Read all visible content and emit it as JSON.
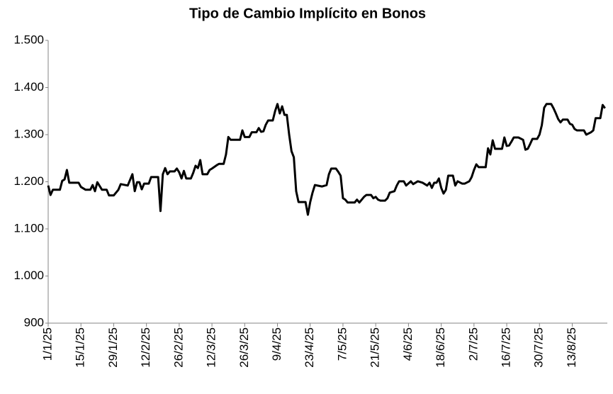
{
  "chart_data": {
    "type": "line",
    "title": "Tipo de Cambio Implícito en Bonos",
    "color": "#000000",
    "x": [
      "1/1/25",
      "2/1/25",
      "3/1/25",
      "6/1/25",
      "7/1/25",
      "8/1/25",
      "9/1/25",
      "10/1/25",
      "14/1/25",
      "15/1/25",
      "17/1/25",
      "19/1/25",
      "20/1/25",
      "21/1/25",
      "22/1/25",
      "24/1/25",
      "26/1/25",
      "27/1/25",
      "29/1/25",
      "31/1/25",
      "1/2/25",
      "4/2/25",
      "6/2/25",
      "7/2/25",
      "8/2/25",
      "9/2/25",
      "10/2/25",
      "11/2/25",
      "13/2/25",
      "14/2/25",
      "17/2/25",
      "18/2/25",
      "19/2/25",
      "20/2/25",
      "21/2/25",
      "22/2/25",
      "24/2/25",
      "25/2/25",
      "26/2/25",
      "27/2/25",
      "28/2/25",
      "1/3/25",
      "3/3/25",
      "4/3/25",
      "5/3/25",
      "6/3/25",
      "7/3/25",
      "8/3/25",
      "10/3/25",
      "11/3/25",
      "12/3/25",
      "14/3/25",
      "15/3/25",
      "17/3/25",
      "18/3/25",
      "19/3/25",
      "20/3/25",
      "24/3/25",
      "25/3/25",
      "26/3/25",
      "28/3/25",
      "29/3/25",
      "31/3/25",
      "1/4/25",
      "2/4/25",
      "3/4/25",
      "4/4/25",
      "5/4/25",
      "7/4/25",
      "8/4/25",
      "9/4/25",
      "10/4/25",
      "11/4/25",
      "12/4/25",
      "13/4/25",
      "14/4/25",
      "15/4/25",
      "16/4/25",
      "17/4/25",
      "18/4/25",
      "21/4/25",
      "22/4/25",
      "23/4/25",
      "24/4/25",
      "25/4/25",
      "28/4/25",
      "30/4/25",
      "1/5/25",
      "2/5/25",
      "4/5/25",
      "5/5/25",
      "6/5/25",
      "7/5/25",
      "8/5/25",
      "9/5/25",
      "12/5/25",
      "13/5/25",
      "14/5/25",
      "15/5/25",
      "16/5/25",
      "17/5/25",
      "19/5/25",
      "20/5/25",
      "21/5/25",
      "22/5/25",
      "23/5/25",
      "25/5/25",
      "26/5/25",
      "27/5/25",
      "29/5/25",
      "30/5/25",
      "31/5/25",
      "2/6/25",
      "3/6/25",
      "5/6/25",
      "6/6/25",
      "8/6/25",
      "10/6/25",
      "12/6/25",
      "13/6/25",
      "14/6/25",
      "15/6/25",
      "16/6/25",
      "17/6/25",
      "18/6/25",
      "19/6/25",
      "20/6/25",
      "21/6/25",
      "23/6/25",
      "24/6/25",
      "25/6/25",
      "27/6/25",
      "28/6/25",
      "30/6/25",
      "1/7/25",
      "2/7/25",
      "3/7/25",
      "4/7/25",
      "7/7/25",
      "8/7/25",
      "9/7/25",
      "10/7/25",
      "11/7/25",
      "14/7/25",
      "15/7/25",
      "16/7/25",
      "17/7/25",
      "18/7/25",
      "19/7/25",
      "21/7/25",
      "23/7/25",
      "24/7/25",
      "25/7/25",
      "26/7/25",
      "27/7/25",
      "29/7/25",
      "30/7/25",
      "31/7/25",
      "1/8/25",
      "2/8/25",
      "4/8/25",
      "5/8/25",
      "6/8/25",
      "7/8/25",
      "8/8/25",
      "9/8/25",
      "11/8/25",
      "12/8/25",
      "13/8/25",
      "14/8/25",
      "15/8/25",
      "18/8/25",
      "19/8/25",
      "21/8/25",
      "22/8/25",
      "23/8/25",
      "25/8/25",
      "26/8/25",
      "27/8/25"
    ],
    "values": [
      1192,
      1172,
      1183,
      1183,
      1202,
      1205,
      1225,
      1198,
      1198,
      1189,
      1183,
      1183,
      1193,
      1180,
      1199,
      1183,
      1183,
      1171,
      1171,
      1183,
      1195,
      1192,
      1216,
      1180,
      1199,
      1199,
      1184,
      1196,
      1196,
      1210,
      1210,
      1138,
      1216,
      1229,
      1216,
      1222,
      1222,
      1228,
      1220,
      1207,
      1223,
      1207,
      1207,
      1219,
      1234,
      1229,
      1246,
      1216,
      1216,
      1225,
      1228,
      1235,
      1238,
      1238,
      1258,
      1295,
      1289,
      1289,
      1309,
      1295,
      1295,
      1305,
      1305,
      1314,
      1306,
      1307,
      1321,
      1330,
      1330,
      1350,
      1365,
      1345,
      1360,
      1342,
      1342,
      1300,
      1265,
      1252,
      1180,
      1157,
      1157,
      1130,
      1157,
      1177,
      1193,
      1190,
      1193,
      1216,
      1228,
      1228,
      1221,
      1213,
      1165,
      1162,
      1156,
      1156,
      1162,
      1156,
      1162,
      1168,
      1172,
      1172,
      1165,
      1168,
      1162,
      1160,
      1160,
      1165,
      1177,
      1180,
      1192,
      1201,
      1201,
      1192,
      1201,
      1195,
      1201,
      1198,
      1192,
      1198,
      1187,
      1198,
      1198,
      1207,
      1187,
      1175,
      1183,
      1213,
      1213,
      1192,
      1201,
      1196,
      1196,
      1201,
      1210,
      1225,
      1237,
      1231,
      1231,
      1271,
      1258,
      1288,
      1270,
      1270,
      1294,
      1276,
      1277,
      1285,
      1294,
      1294,
      1289,
      1268,
      1270,
      1280,
      1291,
      1291,
      1300,
      1320,
      1357,
      1365,
      1365,
      1356,
      1345,
      1333,
      1326,
      1332,
      1332,
      1323,
      1321,
      1312,
      1309,
      1309,
      1300,
      1305,
      1309,
      1335,
      1335,
      1363,
      1356
    ],
    "xlim": [
      "1/1/25",
      "28/8/25"
    ],
    "xticks": [
      "1/1/25",
      "15/1/25",
      "29/1/25",
      "12/2/25",
      "26/2/25",
      "12/3/25",
      "26/3/25",
      "9/4/25",
      "23/4/25",
      "7/5/25",
      "21/5/25",
      "4/6/25",
      "18/6/25",
      "2/7/25",
      "16/7/25",
      "30/7/25",
      "13/8/25"
    ],
    "ylim": [
      900,
      1500
    ],
    "yticks": [
      900,
      {
        "value": 1000,
        "label": "1.000"
      },
      {
        "value": 1100,
        "label": "1.100"
      },
      {
        "value": 1200,
        "label": "1.200"
      },
      {
        "value": 1300,
        "label": "1.300"
      },
      {
        "value": 1400,
        "label": "1.400"
      },
      {
        "value": 1500,
        "label": "1.500"
      }
    ],
    "grid": false
  }
}
